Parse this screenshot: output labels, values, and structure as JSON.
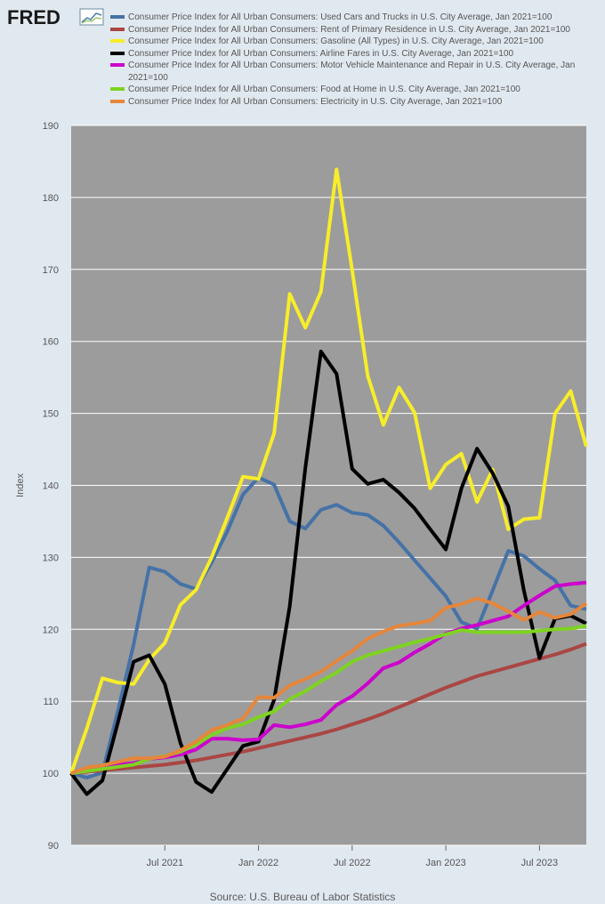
{
  "header": {
    "logo_text": "FRED",
    "logo_icon": "chart-line-icon"
  },
  "footer": {
    "source": "Source: U.S. Bureau of Labor Statistics"
  },
  "chart_data": {
    "type": "line",
    "ylabel": "Index",
    "xlabel": "",
    "ylim": [
      90,
      190
    ],
    "yticks": [
      90,
      100,
      110,
      120,
      130,
      140,
      150,
      160,
      170,
      180,
      190
    ],
    "xticks": [
      {
        "date": "2021-07",
        "label": "Jul 2021"
      },
      {
        "date": "2022-01",
        "label": "Jan 2022"
      },
      {
        "date": "2022-07",
        "label": "Jul 2022"
      },
      {
        "date": "2023-01",
        "label": "Jan 2023"
      },
      {
        "date": "2023-07",
        "label": "Jul 2023"
      }
    ],
    "x": [
      "2021-01",
      "2021-02",
      "2021-03",
      "2021-04",
      "2021-05",
      "2021-06",
      "2021-07",
      "2021-08",
      "2021-09",
      "2021-10",
      "2021-11",
      "2021-12",
      "2022-01",
      "2022-02",
      "2022-03",
      "2022-04",
      "2022-05",
      "2022-06",
      "2022-07",
      "2022-08",
      "2022-09",
      "2022-10",
      "2022-11",
      "2022-12",
      "2023-01",
      "2023-02",
      "2023-03",
      "2023-04",
      "2023-05",
      "2023-06",
      "2023-07",
      "2023-08",
      "2023-09",
      "2023-10"
    ],
    "grid": true,
    "background": "#9c9c9c",
    "series": [
      {
        "name": "Consumer Price Index for All Urban Consumers: Used Cars and Trucks in U.S. City Average, Jan 2021=100",
        "color": "#4572a7",
        "values": [
          100.0,
          99.4,
          100.1,
          108.7,
          117.9,
          128.6,
          128.0,
          126.3,
          125.6,
          129.3,
          133.6,
          138.7,
          141.1,
          140.1,
          135.0,
          134.0,
          136.6,
          137.3,
          136.2,
          135.9,
          134.4,
          132.1,
          129.6,
          127.1,
          124.6,
          121.0,
          120.1,
          125.4,
          130.9,
          130.2,
          128.4,
          126.8,
          123.3,
          122.8
        ]
      },
      {
        "name": "Consumer Price Index for All Urban Consumers: Rent of Primary Residence in U.S. City Average, Jan 2021=100",
        "color": "#aa4643",
        "values": [
          100.0,
          100.2,
          100.4,
          100.6,
          100.8,
          101.0,
          101.2,
          101.5,
          101.8,
          102.2,
          102.6,
          103.0,
          103.5,
          104.0,
          104.5,
          105.0,
          105.5,
          106.1,
          106.8,
          107.5,
          108.3,
          109.2,
          110.1,
          111.0,
          111.9,
          112.7,
          113.5,
          114.1,
          114.7,
          115.3,
          115.9,
          116.5,
          117.2,
          118.0
        ]
      },
      {
        "name": "Consumer Price Index for All Urban Consumers: Gasoline (All Types) in U.S. City Average, Jan 2021=100",
        "color": "#f7ed2a",
        "values": [
          100.0,
          106.2,
          113.2,
          112.6,
          112.4,
          115.8,
          118.1,
          123.4,
          125.5,
          130.0,
          135.5,
          141.2,
          140.9,
          147.2,
          166.6,
          161.9,
          166.9,
          183.9,
          169.9,
          155.2,
          148.4,
          153.6,
          150.1,
          139.6,
          142.9,
          144.4,
          137.7,
          142.2,
          133.9,
          135.3,
          135.5,
          150.0,
          153.1,
          145.4
        ]
      },
      {
        "name": "Consumer Price Index for All Urban Consumers: Airline Fares in U.S. City Average, Jan 2021=100",
        "color": "#000000",
        "values": [
          100.0,
          97.1,
          99.0,
          107.1,
          115.5,
          116.4,
          112.4,
          104.2,
          98.8,
          97.4,
          100.6,
          103.8,
          104.4,
          110.2,
          123.2,
          142.4,
          158.6,
          155.5,
          142.3,
          140.2,
          140.8,
          139.0,
          136.8,
          133.9,
          131.1,
          139.6,
          145.1,
          141.7,
          137.1,
          125.4,
          116.0,
          121.5,
          121.9,
          120.8
        ]
      },
      {
        "name": "Consumer Price Index for All Urban Consumers: Motor Vehicle Maintenance and Repair in U.S. City Average, Jan 2021=100",
        "color": "#cc00cc",
        "values": [
          100.0,
          100.3,
          101.0,
          101.2,
          101.4,
          102.0,
          102.2,
          102.6,
          103.3,
          104.8,
          104.8,
          104.6,
          104.7,
          106.7,
          106.4,
          106.8,
          107.4,
          109.5,
          110.7,
          112.5,
          114.6,
          115.4,
          116.8,
          118.0,
          119.4,
          120.1,
          120.6,
          121.2,
          121.8,
          123.3,
          124.7,
          126.0,
          126.3,
          126.5
        ]
      },
      {
        "name": "Consumer Price Index for All Urban Consumers: Food at Home in U.S. City Average, Jan 2021=100",
        "color": "#7ed321",
        "values": [
          100.0,
          100.3,
          100.6,
          100.9,
          101.2,
          102.0,
          102.4,
          103.0,
          104.0,
          105.3,
          106.3,
          106.8,
          107.8,
          108.6,
          110.3,
          111.4,
          112.8,
          114.0,
          115.5,
          116.4,
          117.0,
          117.6,
          118.2,
          118.7,
          119.3,
          119.9,
          119.6,
          119.6,
          119.6,
          119.6,
          119.8,
          120.0,
          120.1,
          120.5
        ]
      },
      {
        "name": "Consumer Price Index for All Urban Consumers: Electricity in U.S. City Average, Jan 2021=100",
        "color": "#e5863b",
        "values": [
          100.0,
          100.8,
          101.1,
          101.6,
          102.1,
          102.1,
          102.3,
          103.2,
          104.4,
          106.0,
          106.7,
          107.6,
          110.6,
          110.5,
          112.2,
          113.1,
          114.1,
          115.6,
          117.0,
          118.7,
          119.7,
          120.5,
          120.8,
          121.2,
          123.0,
          123.5,
          124.3,
          123.6,
          122.5,
          121.3,
          122.4,
          121.6,
          122.1,
          123.6
        ]
      }
    ]
  }
}
